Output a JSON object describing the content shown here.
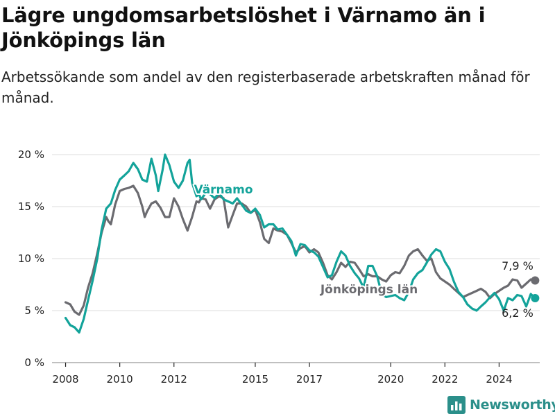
{
  "header": {
    "title": "Lägre ungdomsarbetslöshet i Värnamo än i Jönköpings län",
    "subtitle": "Arbetssökande som andel av den registerbaserade arbetskraften månad för månad."
  },
  "brand": {
    "name": "Newsworthy",
    "icon": "bar-chart-logo-icon",
    "color": "#2b8f8a"
  },
  "chart_data": {
    "type": "line",
    "xlim": [
      2007.5,
      2025.5
    ],
    "ylim": [
      0,
      20
    ],
    "x_ticks": [
      2008,
      2010,
      2012,
      2015,
      2017,
      2020,
      2022,
      2024
    ],
    "y_ticks": [
      {
        "value": 0,
        "label": "0 %"
      },
      {
        "value": 5,
        "label": "5 %"
      },
      {
        "value": 10,
        "label": "10 %"
      },
      {
        "value": 15,
        "label": "15 %"
      },
      {
        "value": 20,
        "label": "20 %"
      }
    ],
    "grid": "horizontal",
    "series": [
      {
        "name": "Jönköpings län",
        "color": "#6b6b70",
        "end_label": "7,9 %",
        "points": [
          [
            2008.0,
            5.8
          ],
          [
            2008.17,
            5.6
          ],
          [
            2008.33,
            4.9
          ],
          [
            2008.5,
            4.6
          ],
          [
            2008.67,
            5.5
          ],
          [
            2008.83,
            7.2
          ],
          [
            2009.0,
            8.6
          ],
          [
            2009.17,
            10.5
          ],
          [
            2009.33,
            12.5
          ],
          [
            2009.5,
            14.0
          ],
          [
            2009.58,
            13.6
          ],
          [
            2009.67,
            13.3
          ],
          [
            2009.83,
            15.2
          ],
          [
            2010.0,
            16.5
          ],
          [
            2010.17,
            16.7
          ],
          [
            2010.33,
            16.8
          ],
          [
            2010.5,
            17.0
          ],
          [
            2010.67,
            16.3
          ],
          [
            2010.83,
            15.0
          ],
          [
            2010.92,
            14.0
          ],
          [
            2011.0,
            14.5
          ],
          [
            2011.17,
            15.3
          ],
          [
            2011.33,
            15.5
          ],
          [
            2011.5,
            14.9
          ],
          [
            2011.67,
            14.0
          ],
          [
            2011.83,
            14.0
          ],
          [
            2012.0,
            15.8
          ],
          [
            2012.17,
            15.0
          ],
          [
            2012.33,
            13.8
          ],
          [
            2012.5,
            12.7
          ],
          [
            2012.67,
            14.0
          ],
          [
            2012.83,
            15.5
          ],
          [
            2012.92,
            15.4
          ],
          [
            2013.0,
            15.8
          ],
          [
            2013.17,
            15.7
          ],
          [
            2013.33,
            14.8
          ],
          [
            2013.5,
            15.7
          ],
          [
            2013.67,
            16.0
          ],
          [
            2013.83,
            15.8
          ],
          [
            2014.0,
            13.0
          ],
          [
            2014.17,
            14.2
          ],
          [
            2014.33,
            15.3
          ],
          [
            2014.5,
            15.3
          ],
          [
            2014.67,
            15.0
          ],
          [
            2014.83,
            14.4
          ],
          [
            2015.0,
            14.7
          ],
          [
            2015.17,
            13.5
          ],
          [
            2015.33,
            11.9
          ],
          [
            2015.5,
            11.5
          ],
          [
            2015.67,
            12.9
          ],
          [
            2015.83,
            12.7
          ],
          [
            2016.0,
            12.6
          ],
          [
            2016.17,
            12.3
          ],
          [
            2016.33,
            11.5
          ],
          [
            2016.5,
            10.6
          ],
          [
            2016.67,
            11.0
          ],
          [
            2016.83,
            11.2
          ],
          [
            2017.0,
            10.6
          ],
          [
            2017.17,
            10.9
          ],
          [
            2017.33,
            10.6
          ],
          [
            2017.5,
            9.6
          ],
          [
            2017.67,
            8.4
          ],
          [
            2017.83,
            8.0
          ],
          [
            2018.0,
            8.7
          ],
          [
            2018.17,
            9.6
          ],
          [
            2018.33,
            9.2
          ],
          [
            2018.5,
            9.7
          ],
          [
            2018.67,
            9.6
          ],
          [
            2018.83,
            9.0
          ],
          [
            2019.0,
            8.3
          ],
          [
            2019.17,
            8.5
          ],
          [
            2019.33,
            8.3
          ],
          [
            2019.5,
            8.3
          ],
          [
            2019.67,
            8.0
          ],
          [
            2019.83,
            7.8
          ],
          [
            2020.0,
            8.4
          ],
          [
            2020.17,
            8.7
          ],
          [
            2020.33,
            8.6
          ],
          [
            2020.5,
            9.3
          ],
          [
            2020.67,
            10.3
          ],
          [
            2020.83,
            10.7
          ],
          [
            2021.0,
            10.9
          ],
          [
            2021.17,
            10.3
          ],
          [
            2021.33,
            9.8
          ],
          [
            2021.5,
            10.0
          ],
          [
            2021.67,
            8.7
          ],
          [
            2021.83,
            8.1
          ],
          [
            2022.0,
            7.8
          ],
          [
            2022.17,
            7.5
          ],
          [
            2022.33,
            7.1
          ],
          [
            2022.5,
            6.7
          ],
          [
            2022.67,
            6.3
          ],
          [
            2022.83,
            6.5
          ],
          [
            2023.0,
            6.7
          ],
          [
            2023.17,
            6.9
          ],
          [
            2023.33,
            7.1
          ],
          [
            2023.5,
            6.8
          ],
          [
            2023.67,
            6.2
          ],
          [
            2023.83,
            6.6
          ],
          [
            2024.0,
            6.9
          ],
          [
            2024.17,
            7.2
          ],
          [
            2024.33,
            7.4
          ],
          [
            2024.5,
            8.0
          ],
          [
            2024.67,
            7.9
          ],
          [
            2024.83,
            7.2
          ],
          [
            2025.0,
            7.6
          ],
          [
            2025.17,
            8.0
          ],
          [
            2025.33,
            7.9
          ]
        ]
      },
      {
        "name": "Värnamo",
        "color": "#13a39a",
        "end_label": "6,2 %",
        "points": [
          [
            2008.0,
            4.3
          ],
          [
            2008.17,
            3.6
          ],
          [
            2008.33,
            3.4
          ],
          [
            2008.5,
            2.9
          ],
          [
            2008.67,
            4.2
          ],
          [
            2008.83,
            6.0
          ],
          [
            2009.0,
            7.9
          ],
          [
            2009.17,
            10.0
          ],
          [
            2009.33,
            12.8
          ],
          [
            2009.5,
            14.8
          ],
          [
            2009.67,
            15.3
          ],
          [
            2009.83,
            16.6
          ],
          [
            2010.0,
            17.6
          ],
          [
            2010.17,
            18.0
          ],
          [
            2010.33,
            18.4
          ],
          [
            2010.5,
            19.2
          ],
          [
            2010.67,
            18.6
          ],
          [
            2010.83,
            17.6
          ],
          [
            2011.0,
            17.4
          ],
          [
            2011.17,
            19.6
          ],
          [
            2011.33,
            18.0
          ],
          [
            2011.42,
            16.5
          ],
          [
            2011.58,
            18.5
          ],
          [
            2011.67,
            20.0
          ],
          [
            2011.83,
            19.0
          ],
          [
            2012.0,
            17.4
          ],
          [
            2012.17,
            16.8
          ],
          [
            2012.33,
            17.5
          ],
          [
            2012.5,
            19.2
          ],
          [
            2012.58,
            19.5
          ],
          [
            2012.67,
            17.3
          ],
          [
            2012.83,
            16.0
          ],
          [
            2012.92,
            16.2
          ],
          [
            2013.0,
            15.7
          ],
          [
            2013.17,
            16.3
          ],
          [
            2013.33,
            16.2
          ],
          [
            2013.5,
            15.8
          ],
          [
            2013.67,
            16.3
          ],
          [
            2013.83,
            15.7
          ],
          [
            2014.0,
            15.5
          ],
          [
            2014.17,
            15.3
          ],
          [
            2014.33,
            15.8
          ],
          [
            2014.5,
            15.2
          ],
          [
            2014.67,
            14.6
          ],
          [
            2014.83,
            14.4
          ],
          [
            2015.0,
            14.8
          ],
          [
            2015.17,
            14.2
          ],
          [
            2015.33,
            13.0
          ],
          [
            2015.5,
            13.3
          ],
          [
            2015.67,
            13.3
          ],
          [
            2015.83,
            12.8
          ],
          [
            2016.0,
            12.9
          ],
          [
            2016.17,
            12.3
          ],
          [
            2016.33,
            11.7
          ],
          [
            2016.5,
            10.3
          ],
          [
            2016.67,
            11.4
          ],
          [
            2016.83,
            11.3
          ],
          [
            2017.0,
            10.8
          ],
          [
            2017.17,
            10.6
          ],
          [
            2017.33,
            10.2
          ],
          [
            2017.5,
            9.2
          ],
          [
            2017.67,
            8.2
          ],
          [
            2017.83,
            8.4
          ],
          [
            2018.0,
            9.7
          ],
          [
            2018.17,
            10.7
          ],
          [
            2018.33,
            10.3
          ],
          [
            2018.5,
            9.3
          ],
          [
            2018.67,
            8.6
          ],
          [
            2018.83,
            8.1
          ],
          [
            2019.0,
            7.2
          ],
          [
            2019.17,
            9.3
          ],
          [
            2019.33,
            9.3
          ],
          [
            2019.5,
            8.3
          ],
          [
            2019.67,
            6.6
          ],
          [
            2019.83,
            6.3
          ],
          [
            2020.0,
            6.4
          ],
          [
            2020.17,
            6.5
          ],
          [
            2020.33,
            6.2
          ],
          [
            2020.5,
            6.0
          ],
          [
            2020.67,
            6.8
          ],
          [
            2020.83,
            8.0
          ],
          [
            2021.0,
            8.6
          ],
          [
            2021.17,
            8.9
          ],
          [
            2021.33,
            9.6
          ],
          [
            2021.5,
            10.4
          ],
          [
            2021.67,
            10.9
          ],
          [
            2021.83,
            10.7
          ],
          [
            2022.0,
            9.7
          ],
          [
            2022.17,
            9.0
          ],
          [
            2022.33,
            7.8
          ],
          [
            2022.5,
            6.8
          ],
          [
            2022.67,
            6.3
          ],
          [
            2022.83,
            5.6
          ],
          [
            2023.0,
            5.2
          ],
          [
            2023.17,
            5.0
          ],
          [
            2023.33,
            5.4
          ],
          [
            2023.5,
            5.8
          ],
          [
            2023.67,
            6.3
          ],
          [
            2023.83,
            6.7
          ],
          [
            2024.0,
            6.1
          ],
          [
            2024.17,
            5.0
          ],
          [
            2024.33,
            6.2
          ],
          [
            2024.5,
            6.0
          ],
          [
            2024.67,
            6.5
          ],
          [
            2024.83,
            6.4
          ],
          [
            2025.0,
            5.4
          ],
          [
            2025.17,
            6.6
          ],
          [
            2025.33,
            6.2
          ]
        ]
      }
    ]
  }
}
